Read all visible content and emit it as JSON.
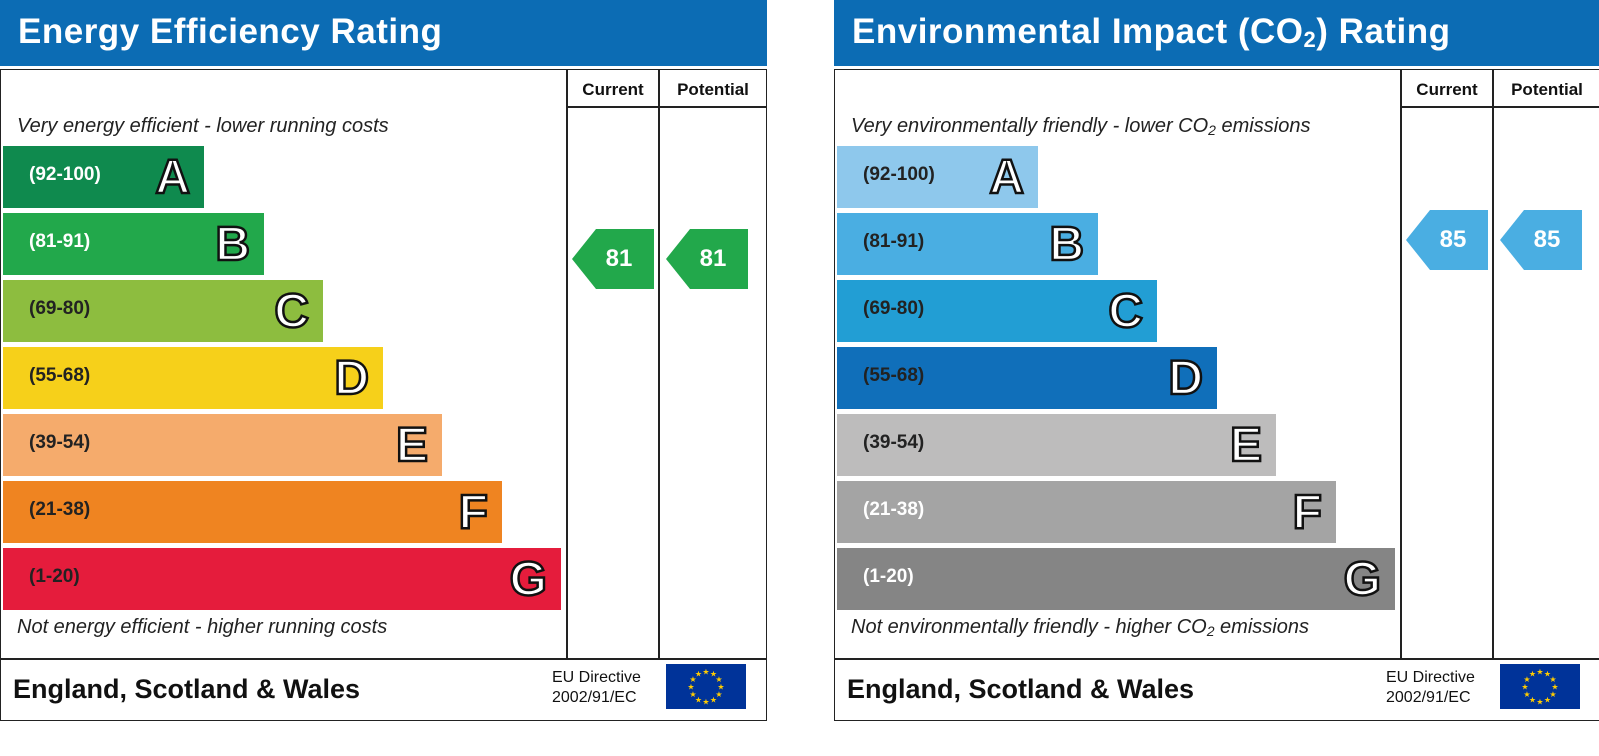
{
  "chart_data": [
    {
      "type": "bar",
      "title": "Energy Efficiency Rating",
      "columns": [
        "Current",
        "Potential"
      ],
      "top_caption": "Very energy efficient - lower running costs",
      "bottom_caption": "Not energy efficient - higher running costs",
      "bands": [
        {
          "range": "(92-100)",
          "letter": "A",
          "color": "#0f8a4e",
          "text_color": "#ffffff"
        },
        {
          "range": "(81-91)",
          "letter": "B",
          "color": "#22a84b",
          "text_color": "#ffffff"
        },
        {
          "range": "(69-80)",
          "letter": "C",
          "color": "#8dbd3f",
          "text_color": "#222222"
        },
        {
          "range": "(55-68)",
          "letter": "D",
          "color": "#f6d01a",
          "text_color": "#222222"
        },
        {
          "range": "(39-54)",
          "letter": "E",
          "color": "#f5ab6c",
          "text_color": "#222222"
        },
        {
          "range": "(21-38)",
          "letter": "F",
          "color": "#ef8421",
          "text_color": "#222222"
        },
        {
          "range": "(1-20)",
          "letter": "G",
          "color": "#e51c3c",
          "text_color": "#222222"
        }
      ],
      "current": {
        "value": "81",
        "band": "B",
        "color": "#22a84b"
      },
      "potential": {
        "value": "81",
        "band": "B",
        "color": "#22a84b"
      },
      "footer_region": "England, Scotland & Wales",
      "eu_line1": "EU Directive",
      "eu_line2": "2002/91/EC"
    },
    {
      "type": "bar",
      "title": "Environmental Impact (CO",
      "title_sub": "2",
      "title_tail": ") Rating",
      "columns": [
        "Current",
        "Potential"
      ],
      "top_caption": "Very environmentally friendly - lower CO",
      "top_caption_sub": "2",
      "top_caption_tail": " emissions",
      "bottom_caption": "Not environmentally friendly - higher CO",
      "bottom_caption_sub": "2",
      "bottom_caption_tail": " emissions",
      "bands": [
        {
          "range": "(92-100)",
          "letter": "A",
          "color": "#8ec8ec",
          "text_color": "#222222"
        },
        {
          "range": "(81-91)",
          "letter": "B",
          "color": "#4aaee2",
          "text_color": "#222222"
        },
        {
          "range": "(69-80)",
          "letter": "C",
          "color": "#229ed4",
          "text_color": "#222222"
        },
        {
          "range": "(55-68)",
          "letter": "D",
          "color": "#106fba",
          "text_color": "#222222"
        },
        {
          "range": "(39-54)",
          "letter": "E",
          "color": "#bdbcbc",
          "text_color": "#222222"
        },
        {
          "range": "(21-38)",
          "letter": "F",
          "color": "#a4a4a4",
          "text_color": "#ffffff"
        },
        {
          "range": "(1-20)",
          "letter": "G",
          "color": "#858585",
          "text_color": "#ffffff"
        }
      ],
      "current": {
        "value": "85",
        "band": "B",
        "color": "#4aaee2"
      },
      "potential": {
        "value": "85",
        "band": "B",
        "color": "#4aaee2"
      },
      "footer_region": "England, Scotland & Wales",
      "eu_line1": "EU Directive",
      "eu_line2": "2002/91/EC"
    }
  ]
}
